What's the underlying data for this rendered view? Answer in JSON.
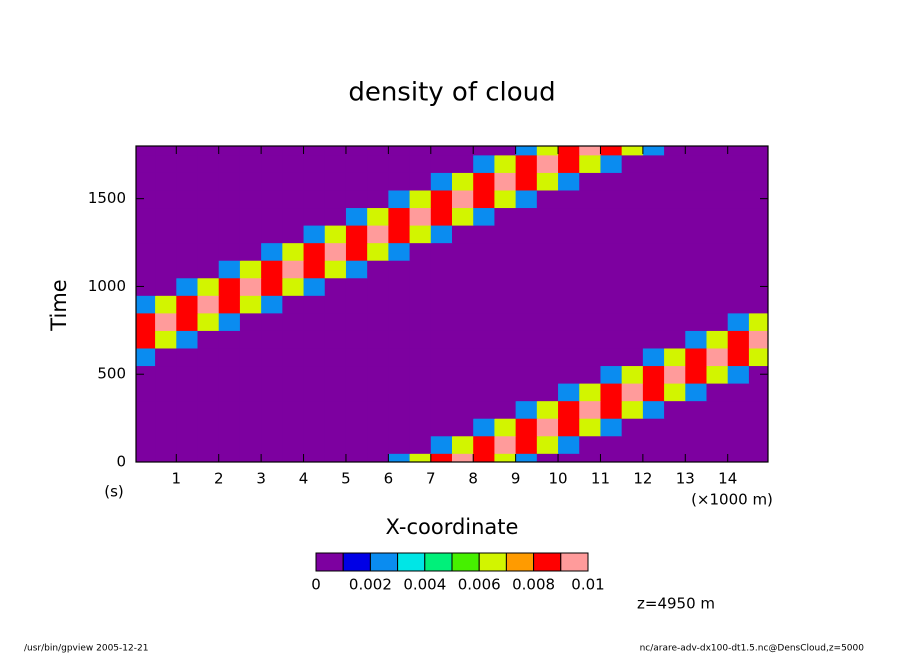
{
  "chart_data": {
    "type": "contour",
    "title": "density of cloud",
    "xlabel": "X-coordinate",
    "xunit": "(×1000 m)",
    "ylabel": "Time",
    "yunit": "(s)",
    "annotation": "z=4950 m",
    "footer_left": "/usr/bin/gpview  2005-12-21",
    "footer_right": "nc/arare-adv-dx100-dt1.5.nc@DensCloud,z=5000",
    "xlim": [
      0.05,
      14.95
    ],
    "ylim": [
      0,
      1800
    ],
    "xticks": [
      1,
      2,
      3,
      4,
      5,
      6,
      7,
      8,
      9,
      10,
      11,
      12,
      13,
      14
    ],
    "yticks": [
      0,
      500,
      1000,
      1500
    ],
    "levels": [
      0,
      0.001,
      0.002,
      0.003,
      0.004,
      0.005,
      0.006,
      0.007,
      0.008,
      0.009,
      0.01
    ],
    "colors": [
      "#7d00a0",
      "#0000e6",
      "#0a8cf0",
      "#00e6e6",
      "#00f07a",
      "#46f000",
      "#d2f500",
      "#ff9b00",
      "#ff0000",
      "#ff9b9b"
    ],
    "colorbar_ticks": [
      0,
      0.002,
      0.004,
      0.006,
      0.008,
      0.01
    ],
    "x": [
      0.25,
      0.75,
      1.25,
      1.75,
      2.25,
      2.75,
      3.25,
      3.75,
      4.25,
      4.75,
      5.25,
      5.75,
      6.25,
      6.75,
      7.25,
      7.75,
      8.25,
      8.75,
      9.25,
      9.75,
      10.25,
      10.75,
      11.25,
      11.75,
      12.25,
      12.75,
      13.25,
      13.75,
      14.25,
      14.75
    ],
    "y": [
      0,
      100,
      200,
      300,
      400,
      500,
      600,
      700,
      800,
      900,
      1000,
      1100,
      1200,
      1300,
      1400,
      1500,
      1600,
      1700,
      1800
    ],
    "z": [
      [
        0,
        0,
        0,
        0,
        0,
        0,
        0,
        0,
        0,
        0,
        0,
        0.0005,
        0.0028,
        0.0062,
        0.0088,
        0.0098,
        0.0088,
        0.0062,
        0.0028,
        0.0005,
        0,
        0,
        0,
        0,
        0,
        0,
        0,
        0,
        0,
        0
      ],
      [
        0,
        0,
        0,
        0,
        0,
        0,
        0,
        0,
        0,
        0,
        0,
        0,
        0,
        0.0005,
        0.0028,
        0.0062,
        0.0088,
        0.0098,
        0.0088,
        0.0062,
        0.0028,
        0.0005,
        0,
        0,
        0,
        0,
        0,
        0,
        0,
        0
      ],
      [
        0,
        0,
        0,
        0,
        0,
        0,
        0,
        0,
        0,
        0,
        0,
        0,
        0,
        0,
        0,
        0.0005,
        0.0028,
        0.0062,
        0.0088,
        0.0098,
        0.0088,
        0.0062,
        0.0028,
        0.0005,
        0,
        0,
        0,
        0,
        0,
        0
      ],
      [
        0,
        0,
        0,
        0,
        0,
        0,
        0,
        0,
        0,
        0,
        0,
        0,
        0,
        0,
        0,
        0,
        0,
        0.0005,
        0.0028,
        0.0062,
        0.0088,
        0.0098,
        0.0088,
        0.0062,
        0.0028,
        0.0005,
        0,
        0,
        0,
        0
      ],
      [
        0,
        0,
        0,
        0,
        0,
        0,
        0,
        0,
        0,
        0,
        0,
        0,
        0,
        0,
        0,
        0,
        0,
        0,
        0,
        0.0005,
        0.0028,
        0.0062,
        0.0088,
        0.0098,
        0.0088,
        0.0062,
        0.0028,
        0.0005,
        0,
        0
      ],
      [
        0,
        0,
        0,
        0,
        0,
        0,
        0,
        0,
        0,
        0,
        0,
        0,
        0,
        0,
        0,
        0,
        0,
        0,
        0,
        0,
        0,
        0.0005,
        0.0028,
        0.0062,
        0.0088,
        0.0098,
        0.0088,
        0.0062,
        0.0028,
        0.0005
      ],
      [
        0.0028,
        0.0005,
        0,
        0,
        0,
        0,
        0,
        0,
        0,
        0,
        0,
        0,
        0,
        0,
        0,
        0,
        0,
        0,
        0,
        0,
        0,
        0,
        0,
        0.0005,
        0.0028,
        0.0062,
        0.0088,
        0.0098,
        0.0088,
        0.0062
      ],
      [
        0.0088,
        0.0062,
        0.0028,
        0.0005,
        0,
        0,
        0,
        0,
        0,
        0,
        0,
        0,
        0,
        0,
        0,
        0,
        0,
        0,
        0,
        0,
        0,
        0,
        0,
        0,
        0,
        0.0005,
        0.0028,
        0.0062,
        0.0088,
        0.0098
      ],
      [
        0.0088,
        0.0098,
        0.0088,
        0.0062,
        0.0028,
        0.0005,
        0,
        0,
        0,
        0,
        0,
        0,
        0,
        0,
        0,
        0,
        0,
        0,
        0,
        0,
        0,
        0,
        0,
        0,
        0,
        0,
        0,
        0.0005,
        0.0028,
        0.0062
      ],
      [
        0.0028,
        0.0062,
        0.0088,
        0.0098,
        0.0088,
        0.0062,
        0.0028,
        0.0005,
        0,
        0,
        0,
        0,
        0,
        0,
        0,
        0,
        0,
        0,
        0,
        0,
        0,
        0,
        0,
        0,
        0,
        0,
        0,
        0,
        0,
        0.0005
      ],
      [
        0,
        0.0005,
        0.0028,
        0.0062,
        0.0088,
        0.0098,
        0.0088,
        0.0062,
        0.0028,
        0.0005,
        0,
        0,
        0,
        0,
        0,
        0,
        0,
        0,
        0,
        0,
        0,
        0,
        0,
        0,
        0,
        0,
        0,
        0,
        0,
        0
      ],
      [
        0,
        0,
        0,
        0.0005,
        0.0028,
        0.0062,
        0.0088,
        0.0098,
        0.0088,
        0.0062,
        0.0028,
        0.0005,
        0,
        0,
        0,
        0,
        0,
        0,
        0,
        0,
        0,
        0,
        0,
        0,
        0,
        0,
        0,
        0,
        0,
        0
      ],
      [
        0,
        0,
        0,
        0,
        0,
        0.0005,
        0.0028,
        0.0062,
        0.0088,
        0.0098,
        0.0088,
        0.0062,
        0.0028,
        0.0005,
        0,
        0,
        0,
        0,
        0,
        0,
        0,
        0,
        0,
        0,
        0,
        0,
        0,
        0,
        0,
        0
      ],
      [
        0,
        0,
        0,
        0,
        0,
        0,
        0,
        0.0005,
        0.0028,
        0.0062,
        0.0088,
        0.0098,
        0.0088,
        0.0062,
        0.0028,
        0.0005,
        0,
        0,
        0,
        0,
        0,
        0,
        0,
        0,
        0,
        0,
        0,
        0,
        0,
        0
      ],
      [
        0,
        0,
        0,
        0,
        0,
        0,
        0,
        0,
        0,
        0.0005,
        0.0028,
        0.0062,
        0.0088,
        0.0098,
        0.0088,
        0.0062,
        0.0028,
        0.0005,
        0,
        0,
        0,
        0,
        0,
        0,
        0,
        0,
        0,
        0,
        0,
        0
      ],
      [
        0,
        0,
        0,
        0,
        0,
        0,
        0,
        0,
        0,
        0,
        0,
        0.0005,
        0.0028,
        0.0062,
        0.0088,
        0.0098,
        0.0088,
        0.0062,
        0.0028,
        0.0005,
        0,
        0,
        0,
        0,
        0,
        0,
        0,
        0,
        0,
        0
      ],
      [
        0,
        0,
        0,
        0,
        0,
        0,
        0,
        0,
        0,
        0,
        0,
        0,
        0,
        0.0005,
        0.0028,
        0.0062,
        0.0088,
        0.0098,
        0.0088,
        0.0062,
        0.0028,
        0.0005,
        0,
        0,
        0,
        0,
        0,
        0,
        0,
        0
      ],
      [
        0,
        0,
        0,
        0,
        0,
        0,
        0,
        0,
        0,
        0,
        0,
        0,
        0,
        0,
        0,
        0.0005,
        0.0028,
        0.0062,
        0.0088,
        0.0098,
        0.0088,
        0.0062,
        0.0028,
        0.0005,
        0,
        0,
        0,
        0,
        0,
        0
      ],
      [
        0,
        0,
        0,
        0,
        0,
        0,
        0,
        0,
        0,
        0,
        0,
        0,
        0,
        0,
        0,
        0,
        0,
        0.0005,
        0.0028,
        0.0062,
        0.0088,
        0.0098,
        0.0088,
        0.0062,
        0.0028,
        0.0005,
        0,
        0,
        0,
        0
      ]
    ]
  }
}
